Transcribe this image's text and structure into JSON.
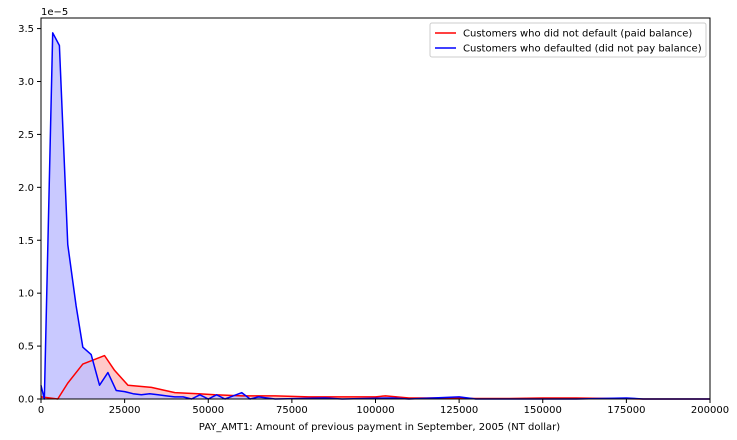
{
  "chart_data": {
    "type": "area",
    "xlabel": "PAY_AMT1: Amount of previous payment in September, 2005 (NT dollar)",
    "ylabel": "",
    "y_scale_label": "1e−5",
    "xlim": [
      0,
      200000
    ],
    "ylim": [
      0,
      3.6
    ],
    "x_ticks": [
      0,
      25000,
      50000,
      75000,
      100000,
      125000,
      150000,
      175000,
      200000
    ],
    "x_tick_labels": [
      "0",
      "25000",
      "50000",
      "75000",
      "100000",
      "125000",
      "150000",
      "175000",
      "200000"
    ],
    "y_ticks": [
      0,
      0.5,
      1.0,
      1.5,
      2.0,
      2.5,
      3.0,
      3.5
    ],
    "y_tick_labels": [
      "0.0",
      "0.5",
      "1.0",
      "1.5",
      "2.0",
      "2.5",
      "3.0",
      "3.5"
    ],
    "grid": false,
    "legend_position": "top-right",
    "series": [
      {
        "name": "Customers who did not default (paid balance)",
        "color": "#ff0000",
        "fill": "#ffc0c0",
        "points": [
          [
            0,
            0.02
          ],
          [
            5000,
            0.0
          ],
          [
            8000,
            0.15
          ],
          [
            12500,
            0.33
          ],
          [
            19000,
            0.41
          ],
          [
            22000,
            0.27
          ],
          [
            26000,
            0.13
          ],
          [
            33000,
            0.11
          ],
          [
            40000,
            0.06
          ],
          [
            47000,
            0.05
          ],
          [
            52000,
            0.04
          ],
          [
            60000,
            0.03
          ],
          [
            70000,
            0.03
          ],
          [
            80000,
            0.02
          ],
          [
            90000,
            0.02
          ],
          [
            100000,
            0.02
          ],
          [
            103000,
            0.03
          ],
          [
            110000,
            0.01
          ],
          [
            120000,
            0.01
          ],
          [
            130000,
            0.005
          ],
          [
            140000,
            0.005
          ],
          [
            150000,
            0.01
          ],
          [
            160000,
            0.01
          ],
          [
            170000,
            0.005
          ],
          [
            180000,
            0.0
          ],
          [
            200000,
            0.0
          ]
        ]
      },
      {
        "name": "Customers who defaulted (did not pay balance)",
        "color": "#0000ff",
        "fill": "#c0c0ff",
        "points": [
          [
            0,
            0.13
          ],
          [
            1000,
            0.0
          ],
          [
            3500,
            3.46
          ],
          [
            5500,
            3.34
          ],
          [
            8000,
            1.46
          ],
          [
            10500,
            0.88
          ],
          [
            12500,
            0.49
          ],
          [
            15000,
            0.42
          ],
          [
            17500,
            0.13
          ],
          [
            20000,
            0.25
          ],
          [
            22500,
            0.08
          ],
          [
            25000,
            0.07
          ],
          [
            27500,
            0.05
          ],
          [
            30000,
            0.04
          ],
          [
            32500,
            0.05
          ],
          [
            35000,
            0.04
          ],
          [
            37500,
            0.03
          ],
          [
            40000,
            0.02
          ],
          [
            42500,
            0.02
          ],
          [
            45000,
            0.0
          ],
          [
            47500,
            0.04
          ],
          [
            50000,
            0.0
          ],
          [
            52500,
            0.04
          ],
          [
            55000,
            0.0
          ],
          [
            57500,
            0.03
          ],
          [
            60000,
            0.06
          ],
          [
            62500,
            0.0
          ],
          [
            65000,
            0.02
          ],
          [
            70000,
            0.0
          ],
          [
            85000,
            0.01
          ],
          [
            90000,
            0.0
          ],
          [
            105000,
            0.01
          ],
          [
            110000,
            0.0
          ],
          [
            125000,
            0.02
          ],
          [
            130000,
            0.0
          ],
          [
            160000,
            0.0
          ],
          [
            175000,
            0.01
          ],
          [
            180000,
            0.0
          ],
          [
            200000,
            0.0
          ]
        ]
      }
    ]
  }
}
